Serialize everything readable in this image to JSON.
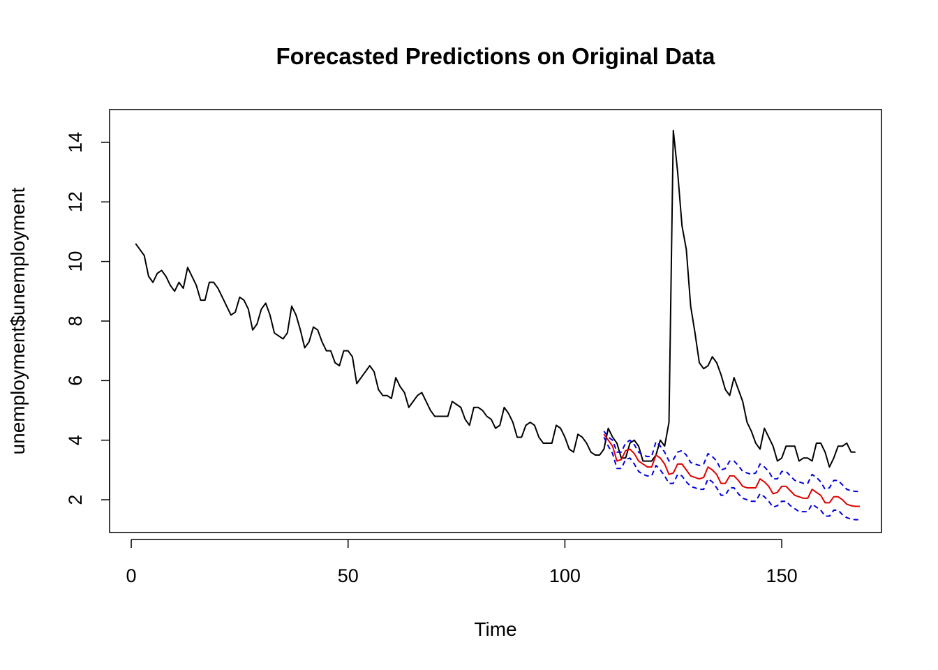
{
  "chart_data": {
    "type": "line",
    "title": "Forecasted Predictions on Original Data",
    "xlabel": "Time",
    "ylabel": "unemployment$unemployment",
    "xlim": [
      -5,
      173
    ],
    "ylim": [
      0.9,
      15.1
    ],
    "xticks": [
      0,
      50,
      100,
      150
    ],
    "yticks": [
      2,
      4,
      6,
      8,
      10,
      12,
      14
    ],
    "grid": false,
    "legend": "none",
    "colors": {
      "observed": "#000000",
      "forecast": "#e00000",
      "interval": "#0000e0"
    },
    "series": [
      {
        "style": "solid",
        "color": "#000000",
        "x_start": 1,
        "values": [
          10.6,
          10.4,
          10.2,
          9.5,
          9.3,
          9.6,
          9.7,
          9.5,
          9.2,
          9.0,
          9.3,
          9.1,
          9.8,
          9.5,
          9.2,
          8.7,
          8.7,
          9.3,
          9.3,
          9.1,
          8.8,
          8.5,
          8.2,
          8.3,
          8.8,
          8.7,
          8.4,
          7.7,
          7.9,
          8.4,
          8.6,
          8.2,
          7.6,
          7.5,
          7.4,
          7.6,
          8.5,
          8.2,
          7.7,
          7.1,
          7.3,
          7.8,
          7.7,
          7.3,
          7.0,
          7.0,
          6.6,
          6.5,
          7.0,
          7.0,
          6.8,
          5.9,
          6.1,
          6.3,
          6.5,
          6.3,
          5.7,
          5.5,
          5.5,
          5.4,
          6.1,
          5.8,
          5.6,
          5.1,
          5.3,
          5.5,
          5.6,
          5.3,
          5.0,
          4.8,
          4.8,
          4.8,
          4.8,
          5.3,
          5.2,
          5.1,
          4.7,
          4.5,
          5.1,
          5.1,
          5.0,
          4.8,
          4.7,
          4.4,
          4.5,
          5.1,
          4.9,
          4.6,
          4.1,
          4.1,
          4.5,
          4.6,
          4.5,
          4.1,
          3.9,
          3.9,
          3.9,
          4.5,
          4.4,
          4.1,
          3.7,
          3.6,
          4.2,
          4.1,
          3.9,
          3.6,
          3.5,
          3.5,
          3.7,
          4.4,
          4.1,
          3.9,
          3.4,
          3.4,
          3.9,
          4.0,
          3.8,
          3.3,
          3.3,
          3.3,
          3.5,
          4.0,
          3.8,
          4.6,
          14.4,
          13.0,
          11.2,
          10.4,
          8.5,
          7.6,
          6.6,
          6.4,
          6.5,
          6.8,
          6.6,
          6.2,
          5.7,
          5.5,
          6.1,
          5.7,
          5.3,
          4.6,
          4.3,
          3.9,
          3.7,
          4.4,
          4.1,
          3.8,
          3.3,
          3.4,
          3.8,
          3.8,
          3.8,
          3.3,
          3.4,
          3.4,
          3.3,
          3.9,
          3.9,
          3.6,
          3.1,
          3.4,
          3.8,
          3.8,
          3.9,
          3.6,
          3.6
        ]
      },
      {
        "style": "solid",
        "color": "#e00000",
        "x_start": 109,
        "values": [
          4.2,
          4.0,
          3.8,
          3.3,
          3.35,
          3.65,
          3.7,
          3.55,
          3.3,
          3.2,
          3.1,
          3.1,
          3.5,
          3.4,
          3.2,
          2.85,
          2.9,
          3.2,
          3.2,
          3.0,
          2.8,
          2.75,
          2.7,
          2.75,
          3.1,
          3.0,
          2.85,
          2.55,
          2.55,
          2.8,
          2.8,
          2.65,
          2.45,
          2.4,
          2.4,
          2.4,
          2.7,
          2.6,
          2.45,
          2.2,
          2.25,
          2.45,
          2.45,
          2.3,
          2.15,
          2.1,
          2.05,
          2.05,
          2.35,
          2.25,
          2.15,
          1.9,
          1.9,
          2.1,
          2.1,
          2.0,
          1.85,
          1.8,
          1.78,
          1.78
        ]
      },
      {
        "style": "dashed",
        "color": "#0000e0",
        "x_start": 109,
        "values": [
          4.3,
          4.1,
          4.0,
          3.6,
          3.6,
          3.9,
          4.0,
          3.85,
          3.6,
          3.5,
          3.45,
          3.45,
          3.95,
          3.8,
          3.6,
          3.3,
          3.35,
          3.6,
          3.65,
          3.5,
          3.25,
          3.2,
          3.15,
          3.2,
          3.55,
          3.45,
          3.3,
          3.0,
          3.05,
          3.3,
          3.3,
          3.15,
          2.95,
          2.9,
          2.85,
          2.9,
          3.2,
          3.1,
          2.95,
          2.7,
          2.7,
          2.95,
          2.95,
          2.8,
          2.65,
          2.6,
          2.55,
          2.55,
          2.85,
          2.75,
          2.6,
          2.35,
          2.4,
          2.65,
          2.65,
          2.5,
          2.35,
          2.3,
          2.28,
          2.28
        ]
      },
      {
        "style": "dashed",
        "color": "#0000e0",
        "x_start": 109,
        "values": [
          4.1,
          3.8,
          3.55,
          3.05,
          3.05,
          3.35,
          3.4,
          3.2,
          2.95,
          2.85,
          2.8,
          2.8,
          3.15,
          3.0,
          2.8,
          2.55,
          2.55,
          2.85,
          2.8,
          2.6,
          2.45,
          2.4,
          2.35,
          2.35,
          2.7,
          2.6,
          2.4,
          2.15,
          2.15,
          2.4,
          2.4,
          2.2,
          2.05,
          2.0,
          1.95,
          1.95,
          2.2,
          2.1,
          1.95,
          1.75,
          1.8,
          1.95,
          1.95,
          1.8,
          1.7,
          1.6,
          1.6,
          1.6,
          1.85,
          1.75,
          1.65,
          1.45,
          1.45,
          1.65,
          1.65,
          1.5,
          1.4,
          1.35,
          1.33,
          1.33
        ]
      }
    ]
  }
}
